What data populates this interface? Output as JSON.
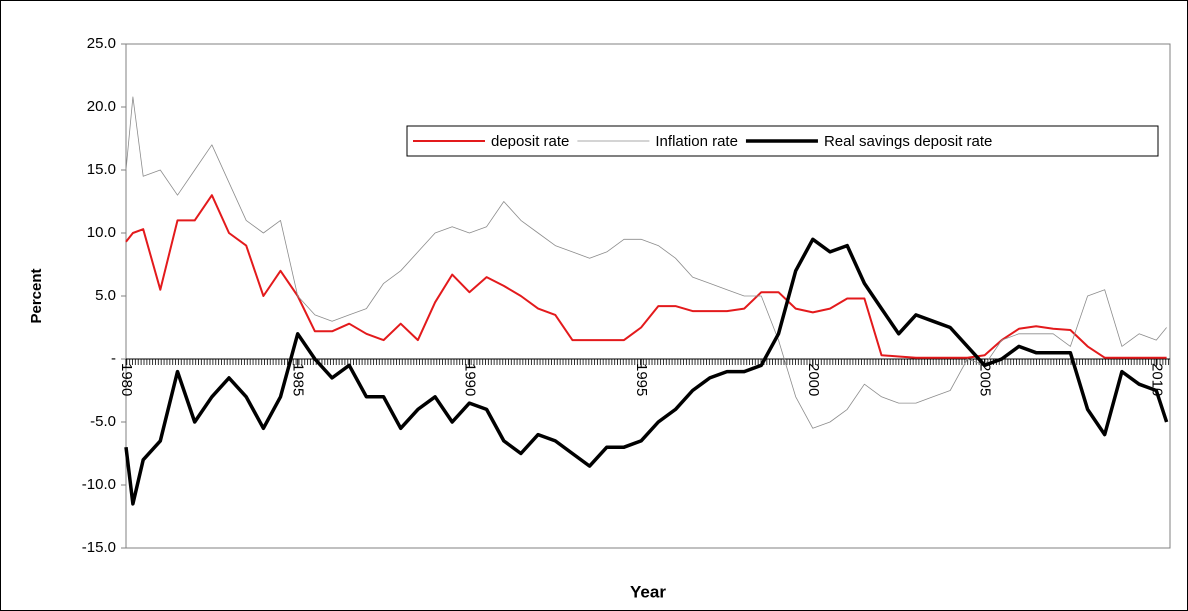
{
  "chart_data": {
    "type": "line",
    "xlabel": "Year",
    "ylabel": "Percent",
    "x": [
      1980,
      1980.2,
      1980.5,
      1981,
      1981.5,
      1982,
      1982.5,
      1983,
      1983.5,
      1984,
      1984.5,
      1985,
      1985.5,
      1986,
      1986.5,
      1987,
      1987.5,
      1988,
      1988.5,
      1989,
      1989.5,
      1990,
      1990.5,
      1991,
      1991.5,
      1992,
      1992.5,
      1993,
      1993.5,
      1994,
      1994.5,
      1995,
      1995.5,
      1996,
      1996.5,
      1997,
      1997.5,
      1998,
      1998.5,
      1999,
      1999.5,
      2000,
      2000.5,
      2001,
      2001.5,
      2002,
      2002.5,
      2003,
      2003.5,
      2004,
      2004.5,
      2005,
      2005.5,
      2006,
      2006.5,
      2007,
      2007.5,
      2008,
      2008.5,
      2009,
      2009.5,
      2010,
      2010.3
    ],
    "series": [
      {
        "name": "deposit rate",
        "color": "#e31a1c",
        "width": 2,
        "values": [
          9.3,
          10,
          10.3,
          5.5,
          11,
          11,
          13,
          10,
          9,
          5,
          7,
          5,
          2.2,
          2.2,
          2.8,
          2,
          1.5,
          2.8,
          1.5,
          4.5,
          6.7,
          5.3,
          6.5,
          5.8,
          5,
          4,
          3.5,
          1.5,
          1.5,
          1.5,
          1.5,
          2.5,
          4.2,
          4.2,
          3.8,
          3.8,
          3.8,
          4,
          5.3,
          5.3,
          4,
          3.7,
          4,
          4.8,
          4.8,
          0.3,
          0.2,
          0.1,
          0.1,
          0.1,
          0.1,
          0.3,
          1.5,
          2.4,
          2.6,
          2.4,
          2.3,
          1,
          0.1,
          0.1,
          0.1,
          0.1,
          0.1
        ]
      },
      {
        "name": "Inflation rate",
        "color": "#8c8c8c",
        "width": 0.8,
        "values": [
          15,
          20.8,
          14.5,
          15,
          13,
          15,
          17,
          14,
          11,
          10,
          11,
          5,
          3.5,
          3,
          3.5,
          4,
          6,
          7,
          8.5,
          10,
          10.5,
          10,
          10.5,
          12.5,
          11,
          10,
          9,
          8.5,
          8,
          8.5,
          9.5,
          9.5,
          9,
          8,
          6.5,
          6,
          5.5,
          5,
          5,
          1.5,
          -3,
          -5.5,
          -5,
          -4,
          -2,
          -3,
          -3.5,
          -3.5,
          -3,
          -2.5,
          0,
          -0.5,
          1.5,
          2,
          2,
          2,
          1,
          5,
          5.5,
          1,
          2,
          1.5,
          2.5
        ]
      },
      {
        "name": "Real savings deposit rate",
        "color": "#000000",
        "width": 3.5,
        "values": [
          -7,
          -11.5,
          -8,
          -6.5,
          -1,
          -5,
          -3,
          -1.5,
          -3,
          -5.5,
          -3,
          2,
          0,
          -1.5,
          -0.5,
          -3,
          -3,
          -5.5,
          -4,
          -3,
          -5,
          -3.5,
          -4,
          -6.5,
          -7.5,
          -6,
          -6.5,
          -7.5,
          -8.5,
          -7,
          -7,
          -6.5,
          -5,
          -4,
          -2.5,
          -1.5,
          -1,
          -1,
          -0.5,
          2,
          7,
          9.5,
          8.5,
          9,
          6,
          4,
          2,
          3.5,
          3,
          2.5,
          1,
          -0.5,
          0,
          1,
          0.5,
          0.5,
          0.5,
          -4,
          -6,
          -1,
          -2,
          -2.5,
          -5
        ]
      }
    ],
    "xlim": [
      1980,
      2010.4
    ],
    "xticks": [
      1980,
      1985,
      1990,
      1995,
      2000,
      2005,
      2010
    ],
    "ylim": [
      -15,
      25
    ],
    "yticks": [
      {
        "value": -15,
        "label": "-15.0"
      },
      {
        "value": -10,
        "label": "-10.0"
      },
      {
        "value": -5,
        "label": "-5.0"
      },
      {
        "value": 0,
        "label": "-"
      },
      {
        "value": 5,
        "label": "5.0"
      },
      {
        "value": 10,
        "label": "10.0"
      },
      {
        "value": 15,
        "label": "15.0"
      },
      {
        "value": 20,
        "label": "20.0"
      },
      {
        "value": 25,
        "label": "25.0"
      }
    ],
    "legend": "top-right"
  }
}
